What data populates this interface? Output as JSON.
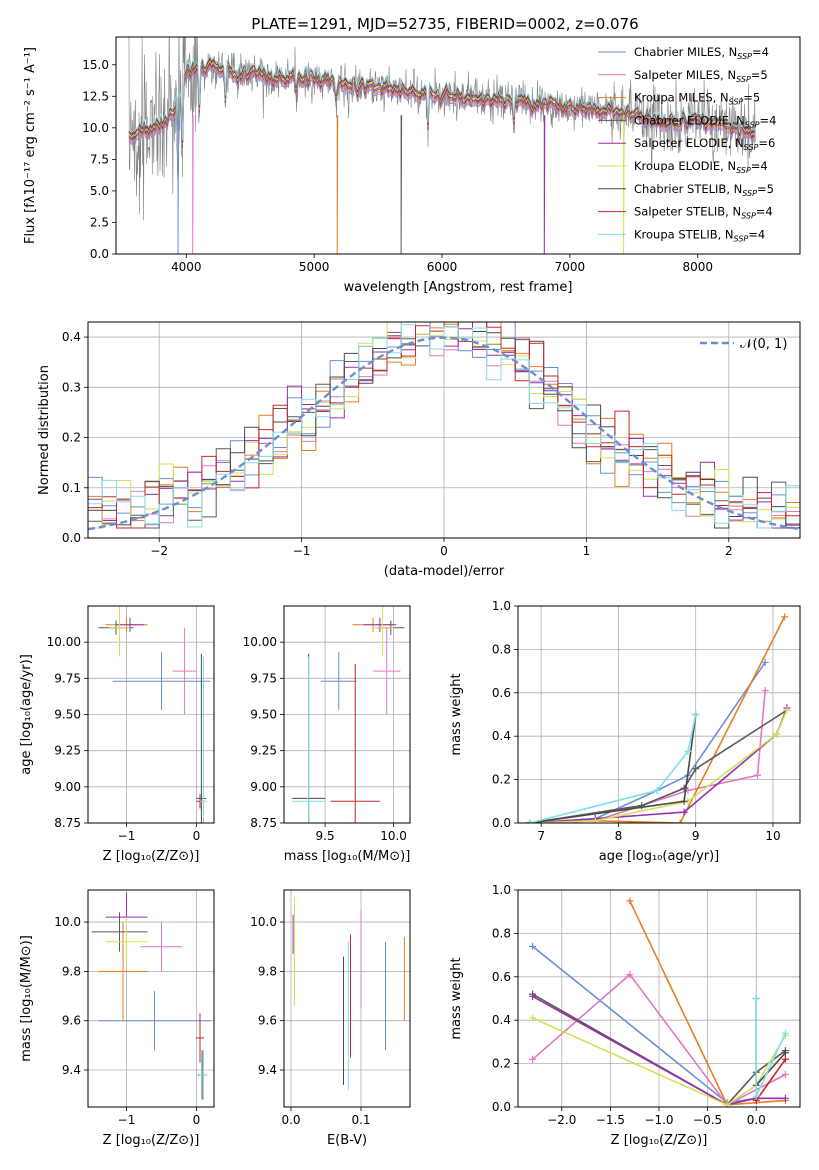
{
  "figure_title": "PLATE=1291, MJD=52735, FIBERID=0002, z=0.076",
  "chart_data": [
    {
      "id": "spectrum",
      "type": "line",
      "xlabel": "wavelength [Angstrom, rest frame]",
      "ylabel": "Flux [fλ10⁻¹⁷ erg cm⁻² s⁻¹ A⁻¹]",
      "xlim": [
        3450,
        8800
      ],
      "ylim": [
        0,
        17.2
      ],
      "xticks": [
        4000,
        5000,
        6000,
        7000,
        8000
      ],
      "xtick_labels": [
        "4000",
        "5000",
        "6000",
        "7000",
        "8000"
      ],
      "yticks": [
        0,
        2.5,
        5,
        7.5,
        10,
        12.5,
        15
      ],
      "ytick_labels": [
        "0.0",
        "2.5",
        "5.0",
        "7.5",
        "10.0",
        "12.5",
        "15.0"
      ],
      "grid": false,
      "legend_position": "right",
      "legend": [
        {
          "label": "Chabrier MILES, N",
          "sub": "SSP",
          "tail": "=4",
          "color": "#6b8fd6"
        },
        {
          "label": "Salpeter MILES, N",
          "sub": "SSP",
          "tail": "=5",
          "color": "#e377c2"
        },
        {
          "label": "Kroupa MILES, N",
          "sub": "SSP",
          "tail": "=5",
          "color": "#e67f22"
        },
        {
          "label": "Chabrier ELODIE, N",
          "sub": "SSP",
          "tail": "=4",
          "color": "#5b5b5b"
        },
        {
          "label": "Salpeter ELODIE, N",
          "sub": "SSP",
          "tail": "=6",
          "color": "#9b2fae"
        },
        {
          "label": "Kroupa ELODIE, N",
          "sub": "SSP",
          "tail": "=4",
          "color": "#d4e157"
        },
        {
          "label": "Chabrier STELIB, N",
          "sub": "SSP",
          "tail": "=5",
          "color": "#4a4a4a"
        },
        {
          "label": "Salpeter STELIB, N",
          "sub": "SSP",
          "tail": "=4",
          "color": "#c62828"
        },
        {
          "label": "Kroupa STELIB, N",
          "sub": "SSP",
          "tail": "=4",
          "color": "#80deea"
        }
      ],
      "data_series": {
        "name": "",
        "color": "#808080"
      },
      "model_color": "#7fd6d6",
      "continuum_points": [
        [
          3550,
          9.3
        ],
        [
          3700,
          9.8
        ],
        [
          3850,
          10.5
        ],
        [
          3950,
          12.0
        ],
        [
          4000,
          14.5
        ],
        [
          4150,
          14.8
        ],
        [
          4400,
          14.5
        ],
        [
          4700,
          14.0
        ],
        [
          5000,
          13.8
        ],
        [
          5300,
          13.4
        ],
        [
          5600,
          13.1
        ],
        [
          6000,
          12.5
        ],
        [
          6300,
          12.3
        ],
        [
          6700,
          12.0
        ],
        [
          7000,
          11.6
        ],
        [
          7400,
          11.3
        ],
        [
          7700,
          10.4
        ],
        [
          8000,
          10.6
        ],
        [
          8300,
          10.0
        ],
        [
          8450,
          9.5
        ]
      ],
      "absorption_features": [
        [
          3933,
          0.5
        ],
        [
          3968,
          0.6
        ],
        [
          4102,
          0.8
        ],
        [
          4305,
          0.8
        ],
        [
          4861,
          0.9
        ],
        [
          5175,
          0.8
        ],
        [
          5270,
          0.9
        ],
        [
          5890,
          0.8
        ],
        [
          6563,
          0.85
        ],
        [
          8498,
          0.85
        ],
        [
          8542,
          0.8
        ],
        [
          8662,
          0.8
        ]
      ],
      "model_drops": [
        3935,
        4050,
        5180,
        5680,
        6800,
        7420
      ]
    },
    {
      "id": "residuals",
      "type": "line",
      "xlabel": "(data-model)/error",
      "ylabel": "Normed distribution",
      "xlim": [
        -2.5,
        2.5
      ],
      "ylim": [
        0,
        0.43
      ],
      "xticks": [
        -2,
        -1,
        0,
        1,
        2
      ],
      "xtick_labels": [
        "−2",
        "−1",
        "0",
        "1",
        "2"
      ],
      "yticks": [
        0,
        0.1,
        0.2,
        0.3,
        0.4
      ],
      "ytick_labels": [
        "0.0",
        "0.1",
        "0.2",
        "0.3",
        "0.4"
      ],
      "grid": true,
      "legend_position": "top-right",
      "legend": [
        {
          "label": "𝒩(0, 1)",
          "color": "#6b8fd6",
          "dash": true
        }
      ],
      "bin_width": 0.1
    },
    {
      "id": "z_vs_age",
      "type": "scatter",
      "xlabel": "Z [log₁₀(Z/Z⊙)]",
      "ylabel": "age  [log₁₀(age/yr)]",
      "xlim": [
        -1.55,
        0.25
      ],
      "ylim": [
        8.75,
        10.25
      ],
      "xticks": [
        -1,
        0
      ],
      "xtick_labels": [
        "−1",
        "0"
      ],
      "yticks": [
        8.75,
        9.0,
        9.25,
        9.5,
        9.75,
        10.0
      ],
      "ytick_labels": [
        "8.75",
        "9.00",
        "9.25",
        "9.50",
        "9.75",
        "10.00"
      ],
      "grid": true,
      "points": [
        {
          "x": -0.5,
          "y": 9.73,
          "xerr": 0.7,
          "yerr": 0.2,
          "color": "#6b8fd6"
        },
        {
          "x": -0.17,
          "y": 9.8,
          "xerr": 0.17,
          "yerr": 0.3,
          "color": "#e377c2"
        },
        {
          "x": -1.0,
          "y": 10.12,
          "xerr": 0.3,
          "yerr": 0.05,
          "color": "#e67f22"
        },
        {
          "x": -1.15,
          "y": 10.1,
          "xerr": 0.25,
          "yerr": 0.05,
          "color": "#5b5b5b"
        },
        {
          "x": -0.95,
          "y": 10.12,
          "xerr": 0.2,
          "yerr": 0.05,
          "color": "#9b2fae"
        },
        {
          "x": -1.1,
          "y": 10.1,
          "xerr": 0.15,
          "yerr": 0.2,
          "color": "#d4e157"
        },
        {
          "x": 0.07,
          "y": 8.92,
          "xerr": 0.07,
          "yerr": 1.0,
          "color": "#4a4a4a"
        },
        {
          "x": 0.05,
          "y": 8.9,
          "xerr": 0.05,
          "yerr": 0.05,
          "color": "#c62828"
        },
        {
          "x": 0.1,
          "y": 8.9,
          "xerr": 0.05,
          "yerr": 1.0,
          "color": "#80deea"
        }
      ]
    },
    {
      "id": "mass_vs_age",
      "type": "scatter",
      "xlabel": "mass [log₁₀(M/M⊙)]",
      "ylabel": "",
      "xlim": [
        9.2,
        10.12
      ],
      "ylim": [
        8.75,
        10.25
      ],
      "xticks": [
        9.5,
        10.0
      ],
      "xtick_labels": [
        "9.5",
        "10.0"
      ],
      "yticks": [
        8.75,
        9.0,
        9.25,
        9.5,
        9.75,
        10.0
      ],
      "ytick_labels": [
        "8.75",
        "9.00",
        "9.25",
        "9.50",
        "9.75",
        "10.00"
      ],
      "grid": true,
      "points": [
        {
          "x": 9.6,
          "y": 9.73,
          "xerr": 0.13,
          "yerr": 0.2,
          "color": "#6b8fd6"
        },
        {
          "x": 9.95,
          "y": 9.8,
          "xerr": 0.1,
          "yerr": 0.3,
          "color": "#e377c2"
        },
        {
          "x": 9.85,
          "y": 10.12,
          "xerr": 0.15,
          "yerr": 0.05,
          "color": "#e67f22"
        },
        {
          "x": 9.98,
          "y": 10.1,
          "xerr": 0.1,
          "yerr": 0.05,
          "color": "#5b5b5b"
        },
        {
          "x": 9.9,
          "y": 10.12,
          "xerr": 0.12,
          "yerr": 0.05,
          "color": "#9b2fae"
        },
        {
          "x": 9.92,
          "y": 10.1,
          "xerr": 0.08,
          "yerr": 0.2,
          "color": "#d4e157"
        },
        {
          "x": 9.38,
          "y": 8.92,
          "xerr": 0.12,
          "yerr": 1.0,
          "color": "#4a4a4a"
        },
        {
          "x": 9.72,
          "y": 8.9,
          "xerr": 0.18,
          "yerr": 0.95,
          "color": "#c62828"
        },
        {
          "x": 9.38,
          "y": 8.9,
          "xerr": 0.12,
          "yerr": 1.0,
          "color": "#80deea"
        }
      ]
    },
    {
      "id": "age_vs_weight",
      "type": "line",
      "xlabel": "age  [log₁₀(age/yr)]",
      "ylabel": "mass weight",
      "xlim": [
        6.7,
        10.35
      ],
      "ylim": [
        0,
        1.0
      ],
      "xticks": [
        7,
        8,
        9,
        10
      ],
      "xtick_labels": [
        "7",
        "8",
        "9",
        "10"
      ],
      "yticks": [
        0,
        0.2,
        0.4,
        0.6,
        0.8,
        1.0
      ],
      "ytick_labels": [
        "0.0",
        "0.2",
        "0.4",
        "0.6",
        "0.8",
        "1.0"
      ],
      "grid": true,
      "series": [
        {
          "color": "#6b8fd6",
          "x": [
            6.85,
            7.7,
            8.5,
            8.9,
            9.9
          ],
          "y": [
            0.0,
            0.02,
            0.15,
            0.22,
            0.74
          ]
        },
        {
          "color": "#e377c2",
          "x": [
            6.85,
            7.7,
            8.9,
            9.8,
            9.9
          ],
          "y": [
            0.0,
            0.01,
            0.15,
            0.22,
            0.61
          ]
        },
        {
          "color": "#e67f22",
          "x": [
            6.85,
            7.7,
            8.8,
            10.15
          ],
          "y": [
            0.0,
            0.01,
            0.0,
            0.95
          ]
        },
        {
          "color": "#5b5b5b",
          "x": [
            6.85,
            8.3,
            8.85,
            9.0,
            10.18
          ],
          "y": [
            0.0,
            0.08,
            0.16,
            0.25,
            0.52
          ]
        },
        {
          "color": "#9b2fae",
          "x": [
            6.85,
            7.7,
            8.85,
            10.05,
            10.18
          ],
          "y": [
            0.0,
            0.02,
            0.05,
            0.41,
            0.53
          ]
        },
        {
          "color": "#d4e157",
          "x": [
            6.85,
            7.7,
            8.9,
            10.05,
            10.18
          ],
          "y": [
            0.0,
            0.01,
            0.1,
            0.41,
            0.52
          ]
        },
        {
          "color": "#4a4a4a",
          "x": [
            6.85,
            8.85,
            9.0
          ],
          "y": [
            0.0,
            0.1,
            0.5
          ]
        },
        {
          "color": "#80deea",
          "x": [
            6.85,
            8.5,
            8.9,
            9.0
          ],
          "y": [
            0.0,
            0.15,
            0.33,
            0.5
          ]
        }
      ]
    },
    {
      "id": "z_vs_mass",
      "type": "scatter",
      "xlabel": "Z [log₁₀(Z/Z⊙)]",
      "ylabel": "mass [log₁₀(M/M⊙)]",
      "xlim": [
        -1.55,
        0.25
      ],
      "ylim": [
        9.25,
        10.13
      ],
      "xticks": [
        -1,
        0
      ],
      "xtick_labels": [
        "−1",
        "0"
      ],
      "yticks": [
        9.4,
        9.6,
        9.8,
        10.0
      ],
      "ytick_labels": [
        "9.4",
        "9.6",
        "9.8",
        "10.0"
      ],
      "grid": true,
      "points": [
        {
          "x": -0.6,
          "y": 9.6,
          "xerr": 0.8,
          "yerr": 0.12,
          "color": "#6b8fd6"
        },
        {
          "x": -0.5,
          "y": 9.9,
          "xerr": 0.3,
          "yerr": 0.1,
          "color": "#e377c2"
        },
        {
          "x": -1.05,
          "y": 9.8,
          "xerr": 0.35,
          "yerr": 0.2,
          "color": "#e67f22"
        },
        {
          "x": -1.1,
          "y": 9.96,
          "xerr": 0.4,
          "yerr": 0.08,
          "color": "#5b5b5b"
        },
        {
          "x": -1.0,
          "y": 10.02,
          "xerr": 0.3,
          "yerr": 0.1,
          "color": "#9b2fae"
        },
        {
          "x": -1.0,
          "y": 9.92,
          "xerr": 0.3,
          "yerr": 0.1,
          "color": "#d4e157"
        },
        {
          "x": 0.08,
          "y": 9.38,
          "xerr": 0.06,
          "yerr": 0.1,
          "color": "#4a4a4a"
        },
        {
          "x": 0.05,
          "y": 9.53,
          "xerr": 0.06,
          "yerr": 0.1,
          "color": "#c62828"
        },
        {
          "x": 0.1,
          "y": 9.38,
          "xerr": 0.06,
          "yerr": 0.1,
          "color": "#80deea"
        }
      ]
    },
    {
      "id": "ebv_vs_mass",
      "type": "scatter",
      "xlabel": "E(B-V)",
      "ylabel": "",
      "xlim": [
        -0.01,
        0.17
      ],
      "ylim": [
        9.25,
        10.13
      ],
      "xticks": [
        0.0,
        0.1
      ],
      "xtick_labels": [
        "0.0",
        "0.1"
      ],
      "yticks": [
        9.4,
        9.6,
        9.8,
        10.0
      ],
      "ytick_labels": [
        "9.4",
        "9.6",
        "9.8",
        "10.0"
      ],
      "grid": true,
      "points": [
        {
          "x": 0.135,
          "y": 9.7,
          "xerr": 0,
          "yerr": 0.22,
          "color": "#6b8fd6"
        },
        {
          "x": 0.1,
          "y": 9.85,
          "xerr": 0,
          "yerr": 0.2,
          "color": "#e377c2"
        },
        {
          "x": 0.162,
          "y": 9.77,
          "xerr": 0,
          "yerr": 0.17,
          "color": "#e67f22"
        },
        {
          "x": 0.075,
          "y": 9.6,
          "xerr": 0,
          "yerr": 0.26,
          "color": "#5b5b5b"
        },
        {
          "x": 0.003,
          "y": 9.95,
          "xerr": 0,
          "yerr": 0.08,
          "color": "#9b2fae"
        },
        {
          "x": 0.005,
          "y": 9.88,
          "xerr": 0,
          "yerr": 0.22,
          "color": "#d4e157"
        },
        {
          "x": 0.075,
          "y": 9.6,
          "xerr": 0,
          "yerr": 0.26,
          "color": "#4a4a4a"
        },
        {
          "x": 0.085,
          "y": 9.7,
          "xerr": 0,
          "yerr": 0.25,
          "color": "#c62828"
        },
        {
          "x": 0.082,
          "y": 9.62,
          "xerr": 0,
          "yerr": 0.3,
          "color": "#80deea"
        }
      ]
    },
    {
      "id": "z_vs_weight",
      "type": "line",
      "xlabel": "Z [log₁₀(Z/Z⊙)]",
      "ylabel": "mass weight",
      "xlim": [
        -2.45,
        0.45
      ],
      "ylim": [
        0,
        1.0
      ],
      "xticks": [
        -2.0,
        -1.5,
        -1.0,
        -0.5,
        0.0
      ],
      "xtick_labels": [
        "−2.0",
        "−1.5",
        "−1.0",
        "−0.5",
        "0.0"
      ],
      "yticks": [
        0,
        0.2,
        0.4,
        0.6,
        0.8,
        1.0
      ],
      "ytick_labels": [
        "0.0",
        "0.2",
        "0.4",
        "0.6",
        "0.8",
        "1.0"
      ],
      "grid": true,
      "series": [
        {
          "color": "#6b8fd6",
          "x": [
            -2.3,
            -0.3,
            0.0
          ],
          "y": [
            0.74,
            0.02,
            0.04
          ]
        },
        {
          "color": "#e377c2",
          "x": [
            -2.3,
            -1.3,
            -0.3,
            0.3
          ],
          "y": [
            0.22,
            0.61,
            0.01,
            0.15
          ]
        },
        {
          "color": "#e67f22",
          "x": [
            -1.3,
            -0.3,
            0.3
          ],
          "y": [
            0.95,
            0.01,
            0.03
          ]
        },
        {
          "color": "#5b5b5b",
          "x": [
            -2.3,
            -0.3,
            0.0,
            0.3
          ],
          "y": [
            0.52,
            0.01,
            0.16,
            0.26
          ]
        },
        {
          "color": "#9b2fae",
          "x": [
            -2.3,
            -0.3,
            0.0,
            0.3
          ],
          "y": [
            0.51,
            0.01,
            0.04,
            0.04
          ]
        },
        {
          "color": "#d4e157",
          "x": [
            -2.3,
            -0.3,
            0.0,
            0.3
          ],
          "y": [
            0.41,
            0.01,
            0.1,
            0.33
          ]
        },
        {
          "color": "#c62828",
          "x": [
            0.0,
            0.3
          ],
          "y": [
            0.03,
            0.22
          ]
        },
        {
          "color": "#4a4a4a",
          "x": [
            0.0,
            0.0,
            0.3
          ],
          "y": [
            0.5,
            0.1,
            0.25
          ]
        },
        {
          "color": "#80deea",
          "x": [
            0.0,
            0.0,
            0.3
          ],
          "y": [
            0.5,
            0.05,
            0.34
          ]
        }
      ]
    }
  ]
}
